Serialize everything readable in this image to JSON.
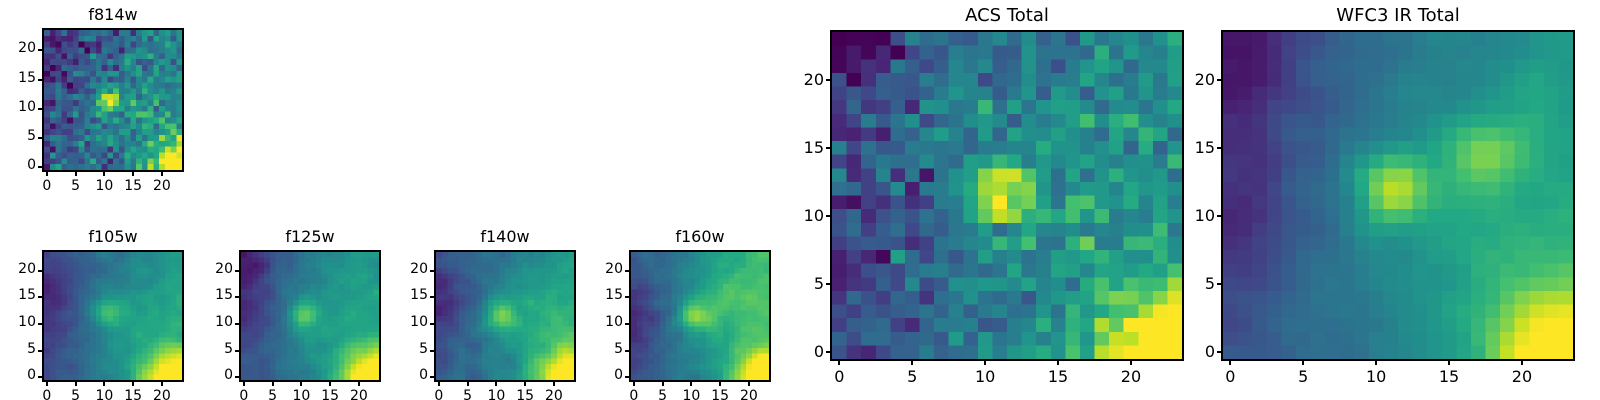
{
  "figure": {
    "background": "#ffffff",
    "axis_color": "#000000"
  },
  "chart_data": {
    "type": "heatmap",
    "colormap": "viridis",
    "colormap_stops": [
      [
        0.0,
        "#440154"
      ],
      [
        0.1,
        "#482475"
      ],
      [
        0.2,
        "#414487"
      ],
      [
        0.3,
        "#355f8d"
      ],
      [
        0.4,
        "#2a788e"
      ],
      [
        0.5,
        "#21918c"
      ],
      [
        0.6,
        "#22a884"
      ],
      [
        0.7,
        "#44bf70"
      ],
      [
        0.8,
        "#7ad151"
      ],
      [
        0.9,
        "#bddf26"
      ],
      [
        1.0,
        "#fde725"
      ]
    ],
    "grid": {
      "nx": 24,
      "ny": 24
    },
    "x_ticks": [
      0,
      5,
      10,
      15,
      20
    ],
    "y_ticks": [
      0,
      5,
      10,
      15,
      20
    ],
    "description": "24x24 pixel HST cutouts of the same source in five filters plus ACS and WFC3 IR stacks; bright compact source near (11,12), bright region at bottom-right corner, dark background toward top-left, origin lower",
    "panels": [
      {
        "id": "f814w",
        "title": "f814w",
        "seed": 814,
        "base": 0.26,
        "grad_x": 0.2,
        "grad_y": -0.04,
        "noise": 0.11,
        "smooth": 0,
        "sources": [
          {
            "x": 10.5,
            "y": 11.5,
            "sigma": 1.4,
            "amp": 0.55
          },
          {
            "x": 23.5,
            "y": -1.0,
            "sigma": 3.6,
            "amp": 0.85
          },
          {
            "x": 16.0,
            "y": 9.0,
            "sigma": 7.0,
            "amp": 0.12
          },
          {
            "x": 1.5,
            "y": 21.0,
            "sigma": 3.0,
            "amp": -0.12
          },
          {
            "x": -2.0,
            "y": 12.0,
            "sigma": 4.0,
            "amp": -0.12
          }
        ]
      },
      {
        "id": "f105w",
        "title": "f105w",
        "seed": 105,
        "base": 0.25,
        "grad_x": 0.3,
        "grad_y": -0.02,
        "noise": 0.07,
        "smooth": 1,
        "sources": [
          {
            "x": 10.5,
            "y": 12.0,
            "sigma": 1.8,
            "amp": 0.32
          },
          {
            "x": 23.5,
            "y": -1.5,
            "sigma": 4.2,
            "amp": 0.85
          },
          {
            "x": 15.0,
            "y": 8.0,
            "sigma": 7.0,
            "amp": 0.12
          },
          {
            "x": -2.0,
            "y": 14.0,
            "sigma": 5.0,
            "amp": -0.18
          }
        ]
      },
      {
        "id": "f125w",
        "title": "f125w",
        "seed": 125,
        "base": 0.25,
        "grad_x": 0.3,
        "grad_y": -0.02,
        "noise": 0.07,
        "smooth": 1,
        "sources": [
          {
            "x": 10.5,
            "y": 11.5,
            "sigma": 1.7,
            "amp": 0.38
          },
          {
            "x": 23.5,
            "y": -1.5,
            "sigma": 4.2,
            "amp": 0.85
          },
          {
            "x": 15.0,
            "y": 9.0,
            "sigma": 7.0,
            "amp": 0.12
          },
          {
            "x": 1.0,
            "y": 22.0,
            "sigma": 2.5,
            "amp": -0.18
          },
          {
            "x": -2.0,
            "y": 13.0,
            "sigma": 5.0,
            "amp": -0.16
          }
        ]
      },
      {
        "id": "f140w",
        "title": "f140w",
        "seed": 140,
        "base": 0.26,
        "grad_x": 0.3,
        "grad_y": -0.02,
        "noise": 0.07,
        "smooth": 1,
        "sources": [
          {
            "x": 10.5,
            "y": 11.5,
            "sigma": 1.8,
            "amp": 0.33
          },
          {
            "x": 23.5,
            "y": -1.5,
            "sigma": 4.2,
            "amp": 0.82
          },
          {
            "x": 16.0,
            "y": 10.0,
            "sigma": 7.0,
            "amp": 0.15
          },
          {
            "x": -2.0,
            "y": 13.0,
            "sigma": 5.0,
            "amp": -0.16
          }
        ]
      },
      {
        "id": "f160w",
        "title": "f160w",
        "seed": 160,
        "base": 0.27,
        "grad_x": 0.32,
        "grad_y": 0.0,
        "noise": 0.07,
        "smooth": 1,
        "sources": [
          {
            "x": 10.5,
            "y": 11.5,
            "sigma": 1.8,
            "amp": 0.38
          },
          {
            "x": 23.5,
            "y": -1.5,
            "sigma": 4.2,
            "amp": 0.8
          },
          {
            "x": 17.0,
            "y": 14.0,
            "sigma": 6.0,
            "amp": 0.2
          },
          {
            "x": -2.0,
            "y": 12.0,
            "sigma": 5.0,
            "amp": -0.16
          }
        ]
      },
      {
        "id": "acs-total",
        "title": "ACS Total",
        "seed": 5,
        "base": 0.27,
        "grad_x": 0.2,
        "grad_y": -0.03,
        "noise": 0.09,
        "smooth": 0,
        "sources": [
          {
            "x": 11.0,
            "y": 11.5,
            "sigma": 1.6,
            "amp": 0.55
          },
          {
            "x": 23.5,
            "y": -1.0,
            "sigma": 4.0,
            "amp": 0.85
          },
          {
            "x": 15.0,
            "y": 12.0,
            "sigma": 8.0,
            "amp": 0.12
          },
          {
            "x": 1.5,
            "y": 22.5,
            "sigma": 2.2,
            "amp": -0.28
          },
          {
            "x": -2.0,
            "y": 8.0,
            "sigma": 5.0,
            "amp": -0.12
          }
        ]
      },
      {
        "id": "wfc3-ir-total",
        "title": "WFC3 IR Total",
        "seed": 3,
        "base": 0.26,
        "grad_x": 0.28,
        "grad_y": -0.02,
        "noise": 0.06,
        "smooth": 1,
        "sources": [
          {
            "x": 11.0,
            "y": 12.0,
            "sigma": 1.5,
            "amp": 0.55
          },
          {
            "x": 17.5,
            "y": 14.5,
            "sigma": 1.7,
            "amp": 0.35
          },
          {
            "x": 23.5,
            "y": -1.5,
            "sigma": 4.0,
            "amp": 0.8
          },
          {
            "x": 16.0,
            "y": 9.0,
            "sigma": 7.0,
            "amp": 0.12
          },
          {
            "x": 1.5,
            "y": 21.5,
            "sigma": 2.5,
            "amp": -0.22
          },
          {
            "x": -2.0,
            "y": 12.0,
            "sigma": 5.0,
            "amp": -0.16
          }
        ]
      }
    ]
  }
}
